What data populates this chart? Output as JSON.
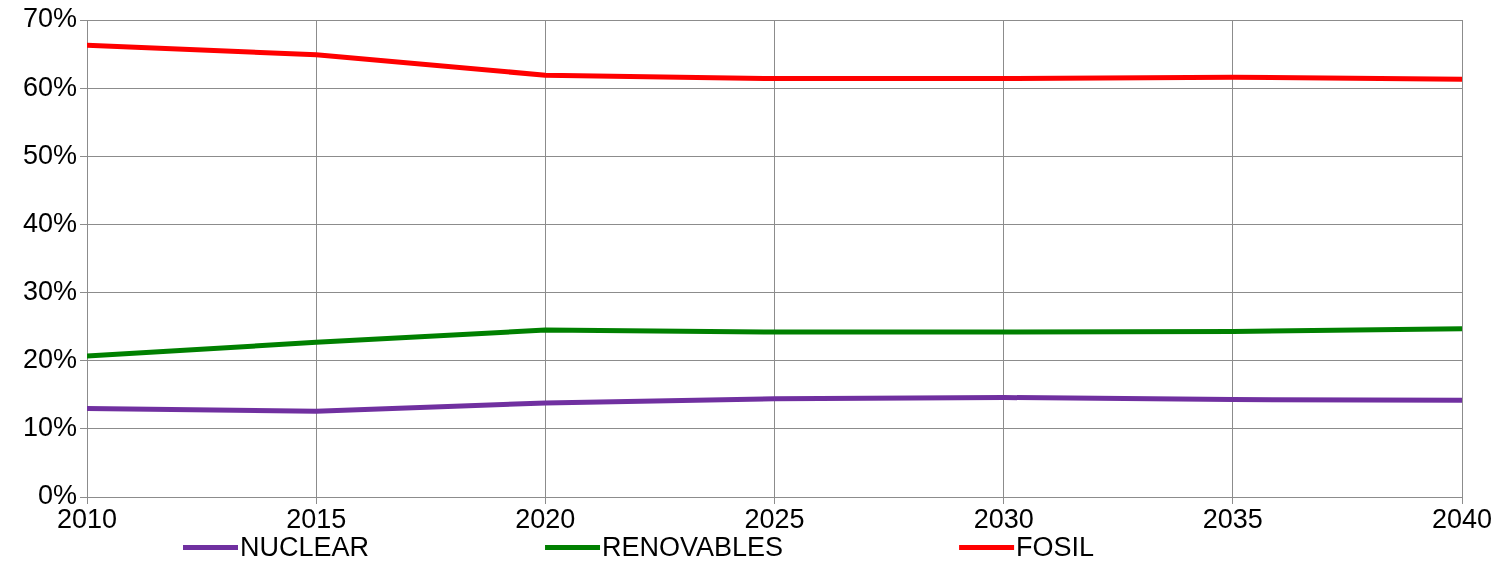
{
  "chart_data": {
    "type": "line",
    "x": [
      2010,
      2015,
      2020,
      2025,
      2030,
      2035,
      2040
    ],
    "series": [
      {
        "name": "NUCLEAR",
        "color": "#7030a0",
        "values": [
          13.0,
          12.6,
          13.8,
          14.4,
          14.6,
          14.3,
          14.2
        ]
      },
      {
        "name": "RENOVABLES",
        "color": "#008000",
        "values": [
          20.7,
          22.7,
          24.5,
          24.2,
          24.2,
          24.3,
          24.7
        ]
      },
      {
        "name": "FOSIL",
        "color": "#ff0000",
        "values": [
          66.3,
          64.9,
          61.9,
          61.4,
          61.4,
          61.6,
          61.3
        ]
      }
    ],
    "xlim": [
      2010,
      2040
    ],
    "xticks": [
      2010,
      2015,
      2020,
      2025,
      2030,
      2035,
      2040
    ],
    "ylim": [
      0,
      70
    ],
    "yticks": [
      {
        "value": 0,
        "label": "0%"
      },
      {
        "value": 10,
        "label": "10%"
      },
      {
        "value": 20,
        "label": "20%"
      },
      {
        "value": 30,
        "label": "30%"
      },
      {
        "value": 40,
        "label": "40%"
      },
      {
        "value": 50,
        "label": "50%"
      },
      {
        "value": 60,
        "label": "60%"
      },
      {
        "value": 70,
        "label": "70%"
      }
    ],
    "grid": true,
    "legend": "bottom",
    "marker": "none"
  }
}
